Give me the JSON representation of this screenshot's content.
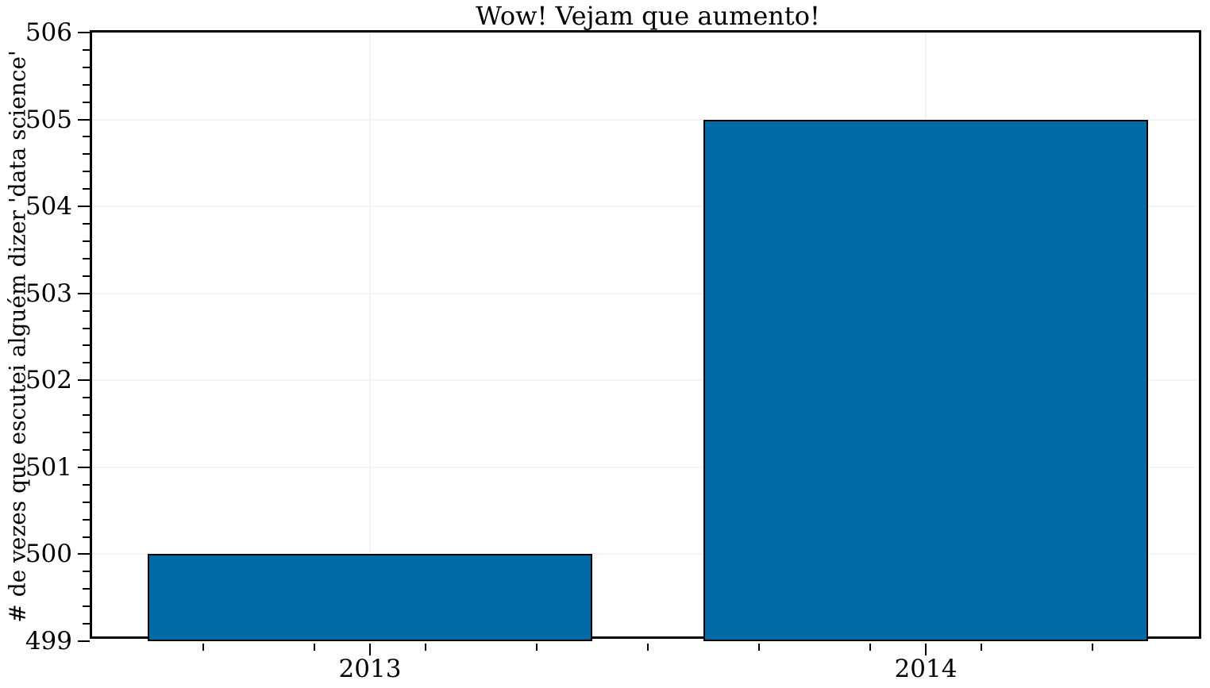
{
  "chart_data": {
    "type": "bar",
    "title": "Wow! Vejam que aumento!",
    "xlabel": "",
    "ylabel": "# de vezes que escutei alguém dizer 'data science'",
    "categories": [
      "2013",
      "2014"
    ],
    "values": [
      500,
      505
    ],
    "ylim": [
      499,
      506
    ],
    "xlim": [
      -0.5,
      1.5
    ],
    "y_major_ticks": [
      499,
      500,
      501,
      502,
      503,
      504,
      505,
      506
    ],
    "y_minor_step": 0.2,
    "x_minor_step": 0.2,
    "bar_width": 0.8,
    "grid": "faint lines at major ticks, horizontal and vertical",
    "legend": "none",
    "colors": {
      "bar_fill": "#006BA4",
      "bar_edge": "#000000",
      "spine": "#000000",
      "grid": "#f4f4f4",
      "text": "#000000",
      "background": "#ffffff"
    }
  }
}
